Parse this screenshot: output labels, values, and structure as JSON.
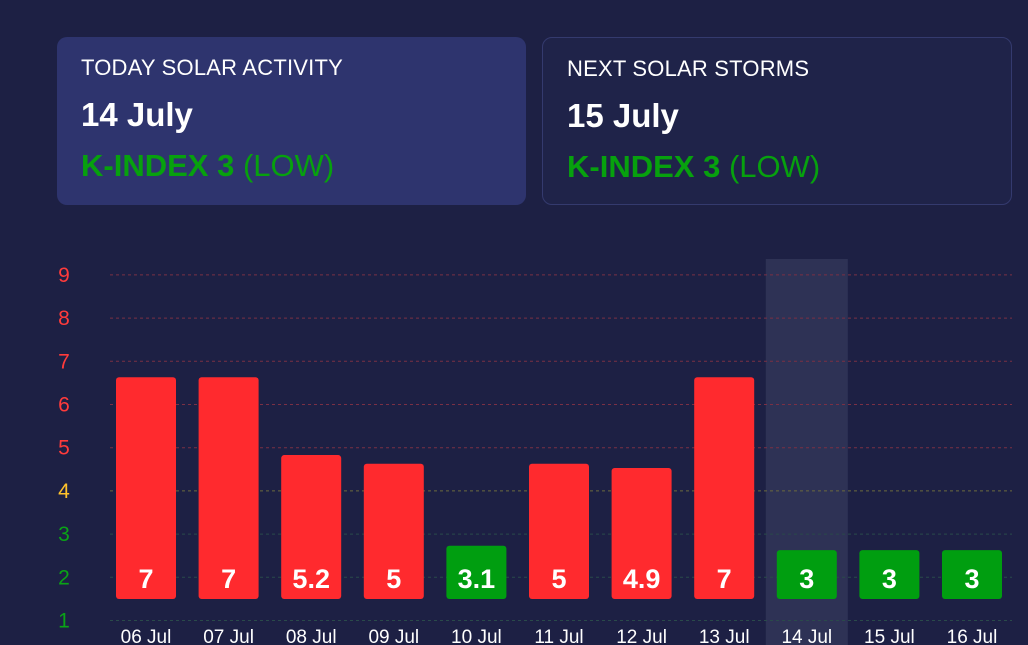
{
  "cards": {
    "today": {
      "title": "TODAY SOLAR ACTIVITY",
      "date": "14 July",
      "kindex_label": "K-INDEX 3",
      "level": "(LOW)"
    },
    "next": {
      "title": "NEXT SOLAR STORMS",
      "date": "15 July",
      "kindex_label": "K-INDEX 3",
      "level": "(LOW)"
    }
  },
  "colors": {
    "background": "#1d2044",
    "high": "#ff2a2e",
    "low": "#009e10",
    "moderate_tick": "#ffc22b",
    "low_tick": "#0aa316",
    "high_tick": "#ff3b3b",
    "highlight": "#2e3255"
  },
  "chart_data": {
    "type": "bar",
    "categories": [
      "06 Jul",
      "07 Jul",
      "08 Jul",
      "09 Jul",
      "10 Jul",
      "11 Jul",
      "12 Jul",
      "13 Jul",
      "14 Jul",
      "15 Jul",
      "16 Jul"
    ],
    "values": [
      7,
      7,
      5.2,
      5,
      3.1,
      5,
      4.9,
      7,
      3,
      3,
      3
    ],
    "value_labels": [
      "7",
      "7",
      "5.2",
      "5",
      "3.1",
      "5",
      "4.9",
      "7",
      "3",
      "3",
      "3"
    ],
    "colors": [
      "high",
      "high",
      "high",
      "high",
      "low",
      "high",
      "high",
      "high",
      "low",
      "low",
      "low"
    ],
    "highlighted_category": "14 Jul",
    "y_ticks": [
      1,
      2,
      3,
      4,
      5,
      6,
      7,
      8,
      9
    ],
    "ylim": [
      1,
      9
    ],
    "grid": true,
    "title": "",
    "xlabel": "",
    "ylabel": ""
  }
}
